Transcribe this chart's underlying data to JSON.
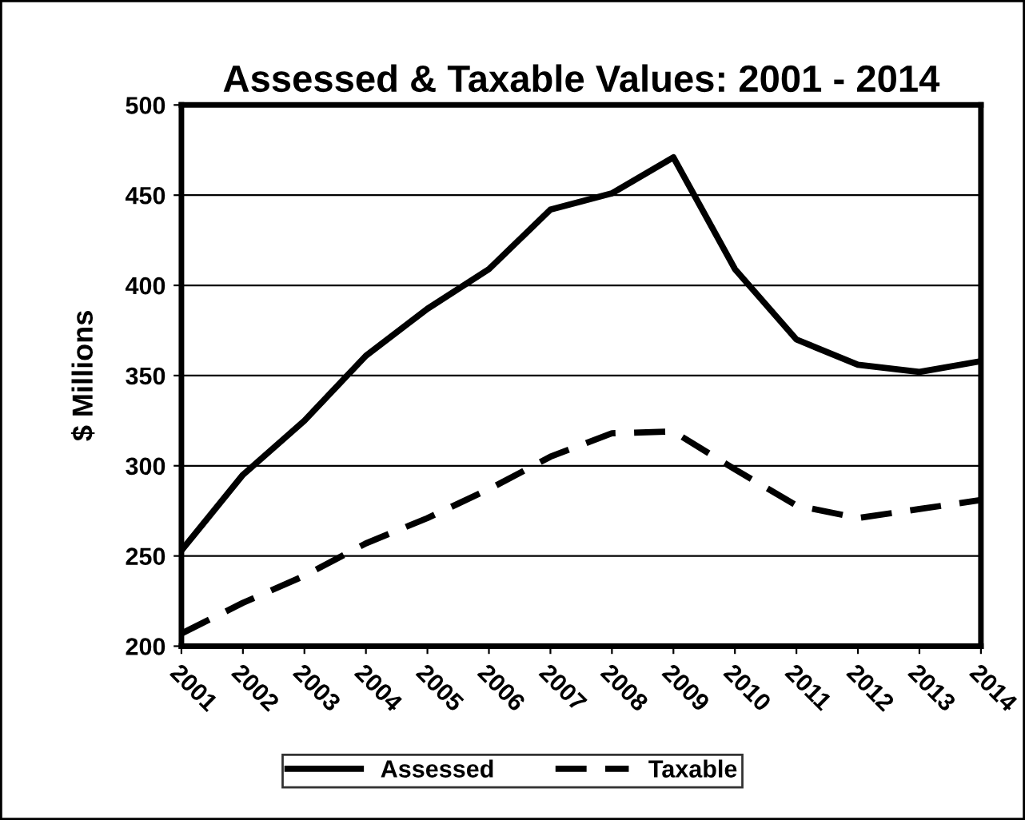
{
  "chart_data": {
    "type": "line",
    "title": "Assessed & Taxable Values: 2001 - 2014",
    "ylabel": "$ Millions",
    "categories": [
      "2001",
      "2002",
      "2003",
      "2004",
      "2005",
      "2006",
      "2007",
      "2008",
      "2009",
      "2010",
      "2011",
      "2012",
      "2013",
      "2014"
    ],
    "series": [
      {
        "name": "Assessed",
        "color": "#000000",
        "line_style": "solid",
        "values": [
          253,
          295,
          325,
          361,
          387,
          409,
          442,
          451,
          471,
          409,
          370,
          356,
          352,
          358
        ]
      },
      {
        "name": "Taxable",
        "color": "#000000",
        "line_style": "dashed",
        "values": [
          207,
          224,
          239,
          257,
          271,
          287,
          305,
          318,
          319,
          298,
          278,
          271,
          276,
          281
        ]
      }
    ],
    "ylim": [
      200,
      500
    ],
    "yticks": [
      200,
      250,
      300,
      350,
      400,
      450,
      500
    ],
    "grid": "y",
    "legend": "bottom",
    "marker": "none"
  }
}
